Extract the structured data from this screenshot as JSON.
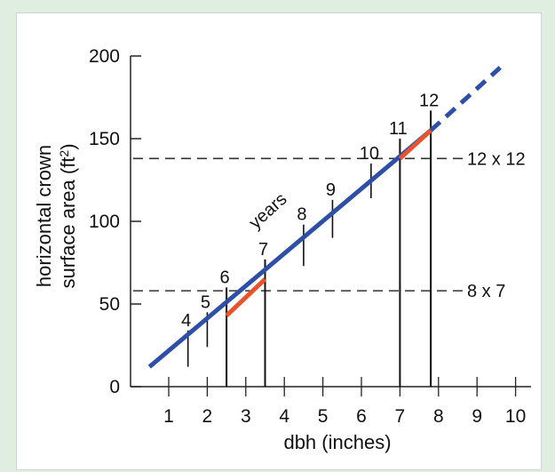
{
  "chart_data": {
    "type": "line",
    "xlabel": "dbh (inches)",
    "ylabel_line1": "horizontal crown",
    "ylabel_line2": "surface area (ft",
    "ylabel_sup": "2",
    "ylabel_close": ")",
    "xlim": [
      0.5,
      10.3
    ],
    "ylim": [
      0,
      200
    ],
    "x_ticks": [
      1,
      2,
      3,
      4,
      5,
      6,
      7,
      8,
      9,
      10
    ],
    "y_ticks": [
      0,
      50,
      100,
      150,
      200
    ],
    "grid": false,
    "series": [
      {
        "style": "solid",
        "color": "#2d4fa8",
        "x": [
          0.5,
          7.8
        ],
        "y": [
          12,
          155
        ]
      },
      {
        "style": "dashed",
        "color": "#2d4fa8",
        "x": [
          7.8,
          9.6
        ],
        "y": [
          155,
          193
        ]
      }
    ],
    "highlighted_segments": [
      {
        "color": "#e8532b",
        "x": [
          2.5,
          3.5
        ],
        "y": [
          43,
          65
        ]
      },
      {
        "color": "#e8532b",
        "x": [
          7.0,
          7.8
        ],
        "y": [
          138,
          155
        ]
      }
    ],
    "year_markers": [
      {
        "label": "4",
        "x": 1.5,
        "y_low": 12,
        "y_high": 34,
        "heavy": false
      },
      {
        "label": "5",
        "x": 2.0,
        "y_low": 24,
        "y_high": 45,
        "heavy": false
      },
      {
        "label": "6",
        "x": 2.5,
        "y_low": 0,
        "y_high": 60,
        "heavy": true
      },
      {
        "label": "7",
        "x": 3.5,
        "y_low": 0,
        "y_high": 77,
        "heavy": true
      },
      {
        "label": "8",
        "x": 4.5,
        "y_low": 73,
        "y_high": 98,
        "heavy": false
      },
      {
        "label": "9",
        "x": 5.25,
        "y_low": 90,
        "y_high": 113,
        "heavy": false
      },
      {
        "label": "10",
        "x": 6.25,
        "y_low": 114,
        "y_high": 135,
        "heavy": false
      },
      {
        "label": "11",
        "x": 7.0,
        "y_low": 0,
        "y_high": 150,
        "heavy": true
      },
      {
        "label": "12",
        "x": 7.8,
        "y_low": 0,
        "y_high": 167,
        "heavy": true
      }
    ],
    "annotation_years": "years",
    "reference_lines": [
      {
        "y": 138,
        "label": "12 x 12"
      },
      {
        "y": 58,
        "label": "8 x 7"
      }
    ]
  }
}
